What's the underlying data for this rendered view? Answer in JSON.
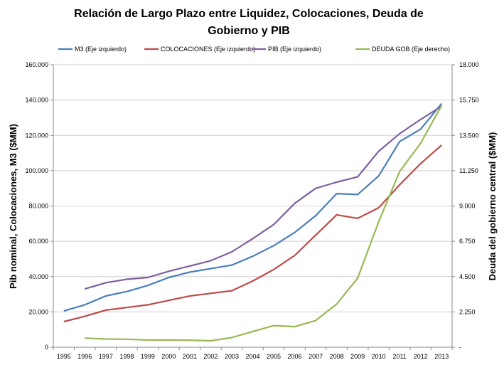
{
  "chart_data": {
    "type": "line",
    "title_lines": [
      "Relación de Largo Plazo entre Liquidez, Colocaciones, Deuda de",
      "Gobierno y PIB"
    ],
    "ylabel_left": "Pib nominal, Colocaciones, M3 ($MM)",
    "ylabel_right": "Deuda del gobierno central ($MM)",
    "x": [
      "1995",
      "1996",
      "1997",
      "1998",
      "1999",
      "2000",
      "2001",
      "2002",
      "2003",
      "2004",
      "2005",
      "2006",
      "2007",
      "2008",
      "2009",
      "2010",
      "2011",
      "2012",
      "2013"
    ],
    "ylim_left": [
      0,
      160000
    ],
    "ylim_right": [
      0,
      18000
    ],
    "left_ticks": [
      "0",
      "20.000",
      "40.000",
      "60.000",
      "80.000",
      "100.000",
      "120.000",
      "140.000",
      "160.000"
    ],
    "right_ticks": [
      "-",
      "2.250",
      "4.500",
      "6.750",
      "9.000",
      "11.250",
      "13.500",
      "15.750",
      "18.000"
    ],
    "legend_position": "top",
    "grid": true,
    "series": [
      {
        "name": "M3 (Eje izquierdo)",
        "axis": "left",
        "color": "#4a7ebb",
        "values": [
          20500,
          24000,
          29000,
          31500,
          35000,
          39500,
          42500,
          44500,
          46500,
          51500,
          57500,
          65000,
          74500,
          87000,
          86500,
          97000,
          116500,
          123500,
          138000
        ]
      },
      {
        "name": "COLOCACIONES (Eje izquierdo)",
        "axis": "left",
        "color": "#be4b48",
        "values": [
          14500,
          17500,
          21000,
          22500,
          24000,
          26500,
          29000,
          30500,
          32000,
          37500,
          44000,
          52000,
          63500,
          75000,
          73000,
          79000,
          92000,
          104000,
          114500
        ]
      },
      {
        "name": "PIB (Eje izquierdo)",
        "axis": "left",
        "color": "#7d60a0",
        "values": [
          null,
          33000,
          36500,
          38500,
          39500,
          43000,
          46000,
          49000,
          54000,
          61500,
          69500,
          81500,
          90000,
          93500,
          96500,
          111000,
          121000,
          129000,
          136500
        ]
      },
      {
        "name": "DEUDA GOB (Eje derecho)",
        "axis": "right",
        "color": "#98b954",
        "values": [
          null,
          580,
          520,
          510,
          460,
          460,
          450,
          410,
          610,
          1000,
          1380,
          1310,
          1700,
          2750,
          4400,
          8000,
          11200,
          13000,
          15400
        ]
      }
    ]
  }
}
